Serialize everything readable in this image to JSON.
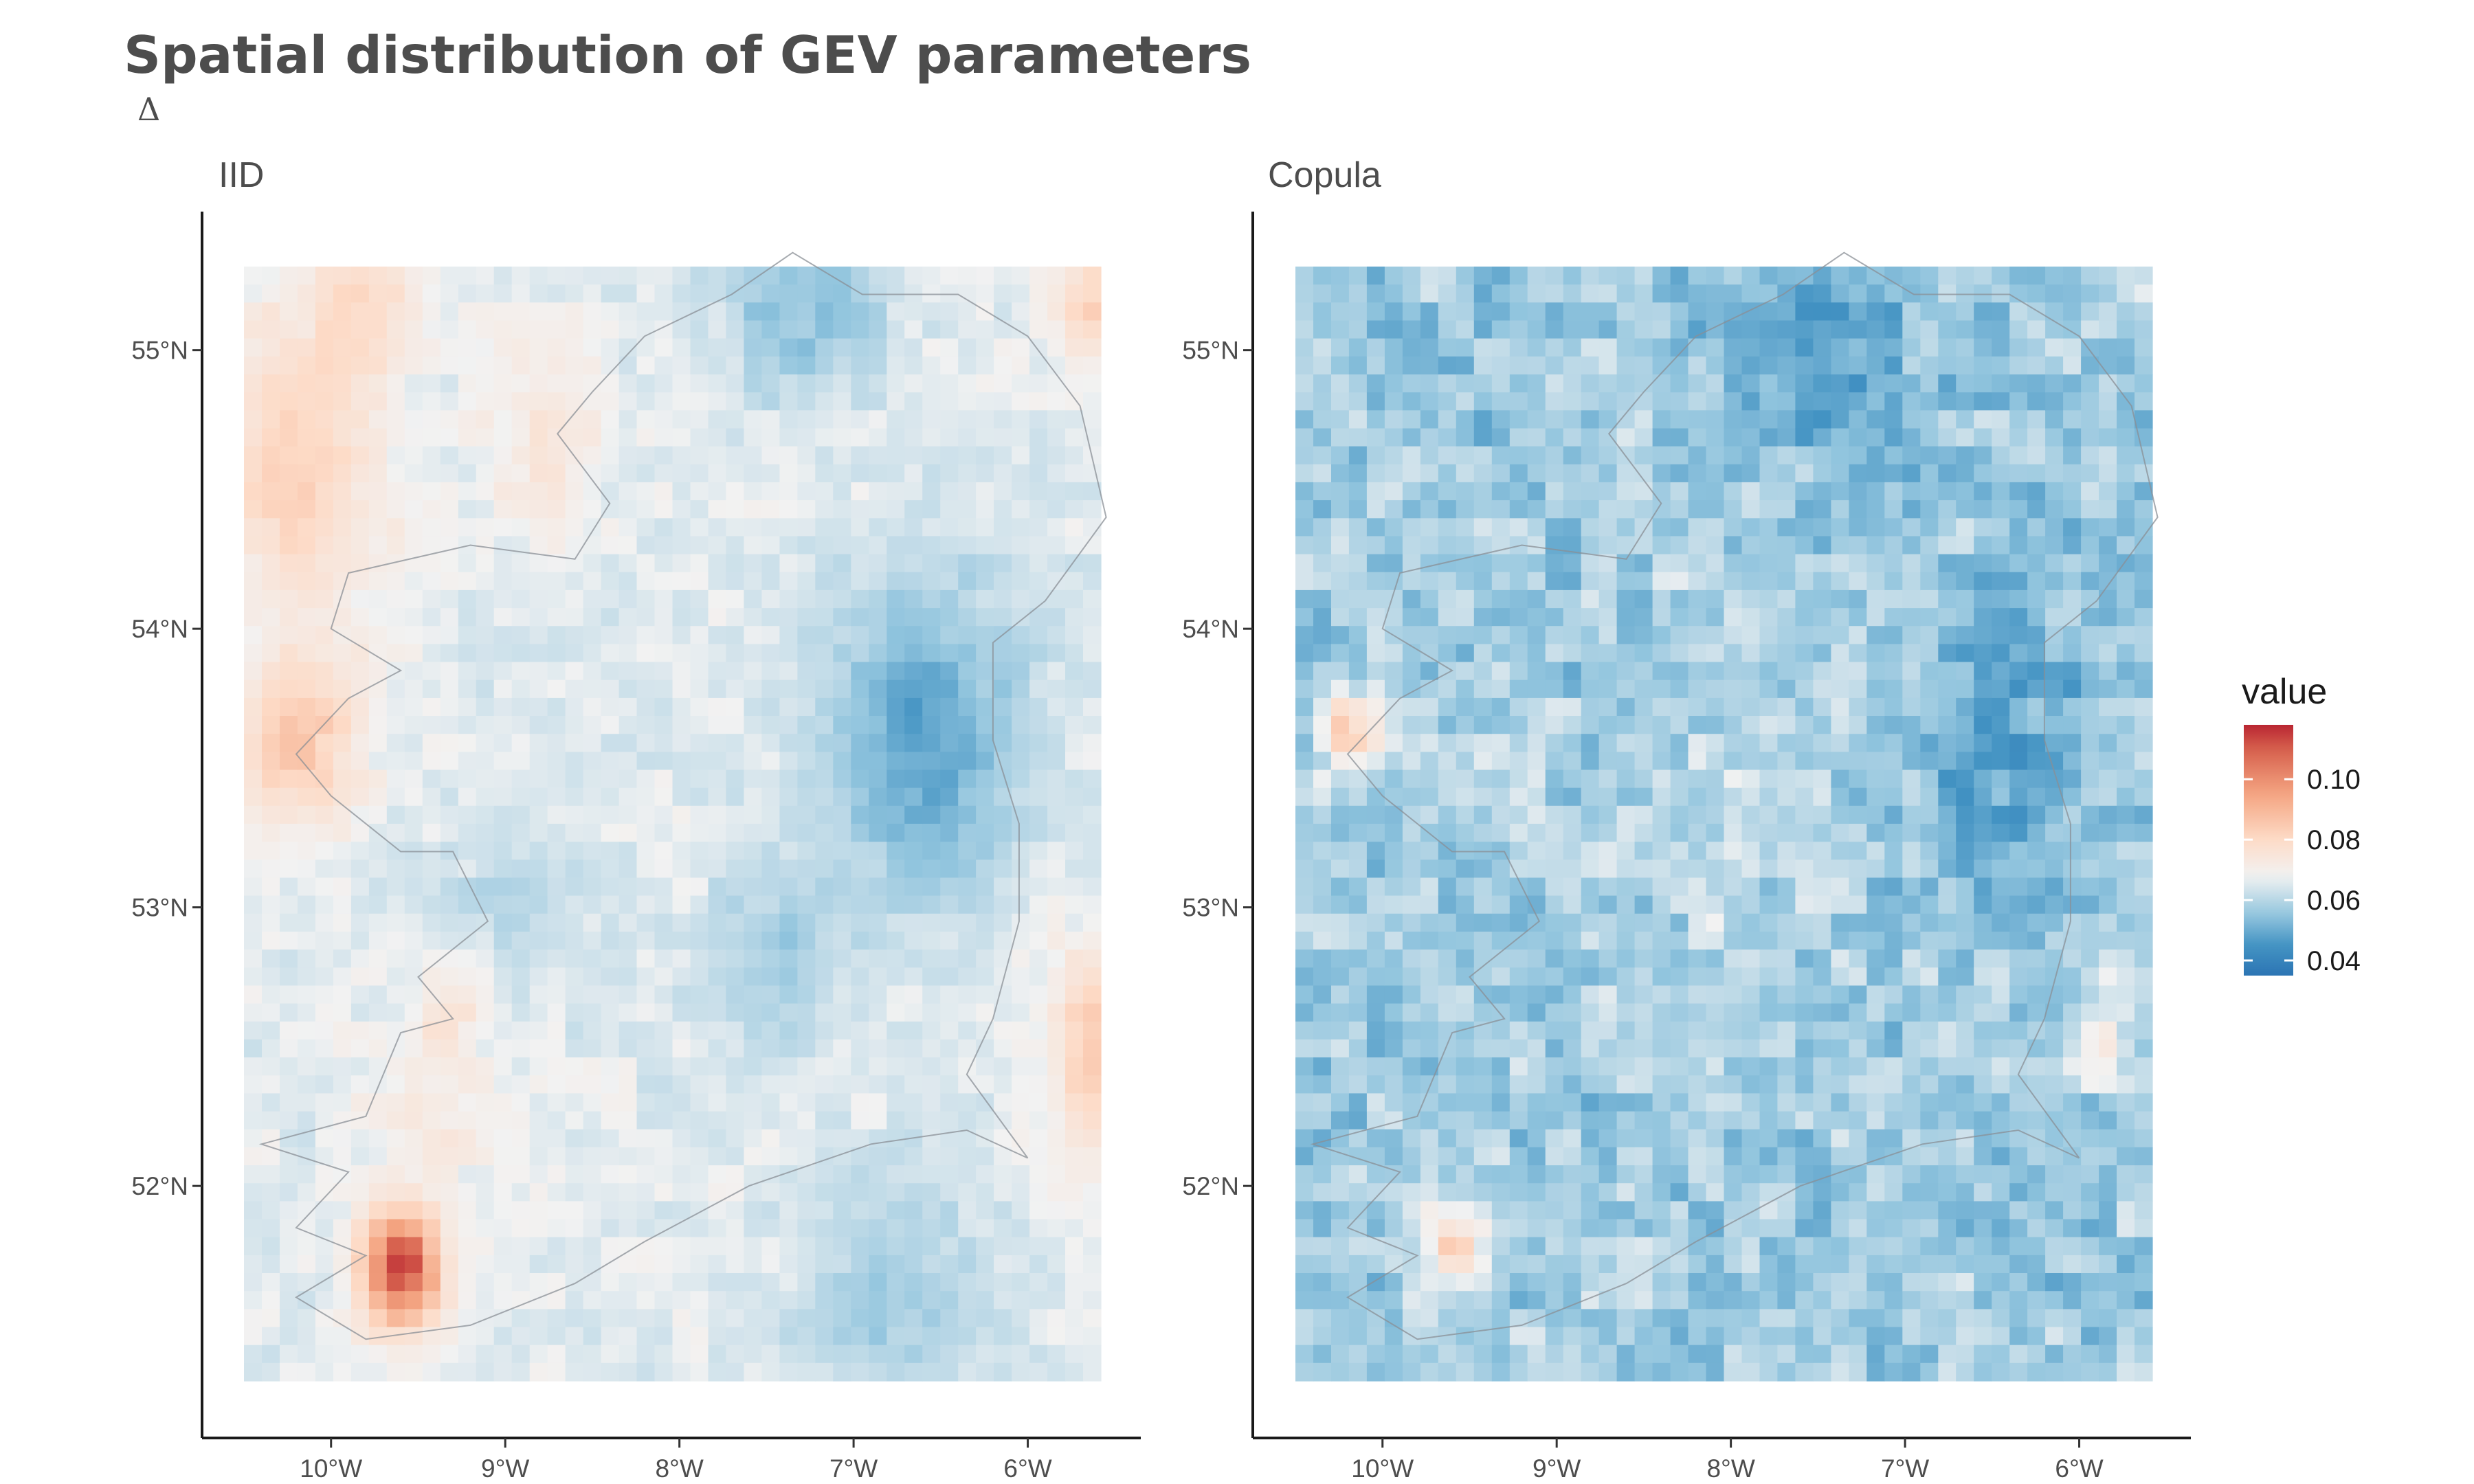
{
  "chart_data": {
    "type": "heatmap",
    "title": "Spatial distribution of GEV parameters",
    "subtitle": "Δ",
    "value_name": "value",
    "color_scale": {
      "palette": "RdBu",
      "stops": [
        {
          "value": 0.03,
          "color": "#2166ac"
        },
        {
          "value": 0.045,
          "color": "#4393c3"
        },
        {
          "value": 0.055,
          "color": "#92c5de"
        },
        {
          "value": 0.068,
          "color": "#f2f2f2"
        },
        {
          "value": 0.08,
          "color": "#fddbc7"
        },
        {
          "value": 0.095,
          "color": "#f4a582"
        },
        {
          "value": 0.11,
          "color": "#d6604d"
        },
        {
          "value": 0.12,
          "color": "#b2182b"
        }
      ],
      "limits": [
        0.035,
        0.118
      ],
      "legend_breaks": [
        0.04,
        0.06,
        0.08,
        0.1
      ],
      "legend_labels": [
        "0.04",
        "0.06",
        "0.08",
        "0.10"
      ],
      "legend_position": "right"
    },
    "x_range": [
      -10.5,
      -5.58
    ],
    "y_range": [
      51.3,
      55.3
    ],
    "x_ticks": [
      -10,
      -9,
      -8,
      -7,
      -6
    ],
    "x_tick_labels": [
      "10°W",
      "9°W",
      "8°W",
      "7°W",
      "6°W"
    ],
    "y_ticks": [
      52,
      53,
      54,
      55
    ],
    "y_tick_labels": [
      "52°N",
      "53°N",
      "54°N",
      "55°N"
    ],
    "grid": false,
    "panels": [
      {
        "name": "IID",
        "field": {
          "base": 0.066,
          "features": [
            {
              "lon": -9.6,
              "lat": 51.7,
              "amp": 0.048,
              "sx": 0.16,
              "sy": 0.14
            },
            {
              "lon": -10.2,
              "lat": 53.6,
              "amp": 0.02,
              "sx": 0.25,
              "sy": 0.2
            },
            {
              "lon": -10.2,
              "lat": 54.6,
              "amp": 0.016,
              "sx": 0.35,
              "sy": 0.4
            },
            {
              "lon": -5.6,
              "lat": 52.5,
              "amp": 0.018,
              "sx": 0.2,
              "sy": 0.25
            },
            {
              "lon": -5.6,
              "lat": 55.2,
              "amp": 0.016,
              "sx": 0.2,
              "sy": 0.15
            },
            {
              "lon": -8.8,
              "lat": 54.7,
              "amp": 0.008,
              "sx": 0.25,
              "sy": 0.25
            },
            {
              "lon": -9.8,
              "lat": 55.2,
              "amp": 0.01,
              "sx": 0.2,
              "sy": 0.2
            },
            {
              "lon": -6.6,
              "lat": 53.6,
              "amp": -0.018,
              "sx": 0.4,
              "sy": 0.4
            },
            {
              "lon": -7.3,
              "lat": 55.2,
              "amp": -0.012,
              "sx": 0.35,
              "sy": 0.25
            },
            {
              "lon": -7.5,
              "lat": 52.8,
              "amp": -0.008,
              "sx": 0.3,
              "sy": 0.25
            },
            {
              "lon": -6.8,
              "lat": 51.6,
              "amp": -0.008,
              "sx": 0.4,
              "sy": 0.3
            },
            {
              "lon": -9.4,
              "lat": 52.3,
              "amp": 0.006,
              "sx": 0.3,
              "sy": 0.3
            },
            {
              "lon": -9.3,
              "lat": 52.65,
              "amp": 0.006,
              "sx": 0.15,
              "sy": 0.15
            },
            {
              "lon": -9.0,
              "lat": 53.0,
              "amp": -0.005,
              "sx": 0.3,
              "sy": 0.3
            }
          ],
          "noise": 0.004
        }
      },
      {
        "name": "Copula",
        "field": {
          "base": 0.057,
          "features": [
            {
              "lon": -10.2,
              "lat": 53.65,
              "amp": 0.03,
              "sx": 0.12,
              "sy": 0.1
            },
            {
              "lon": -9.6,
              "lat": 51.8,
              "amp": 0.02,
              "sx": 0.15,
              "sy": 0.15
            },
            {
              "lon": -6.5,
              "lat": 53.6,
              "amp": -0.01,
              "sx": 0.35,
              "sy": 0.35
            },
            {
              "lon": -7.5,
              "lat": 55.0,
              "amp": -0.008,
              "sx": 0.4,
              "sy": 0.3
            },
            {
              "lon": -8.0,
              "lat": 53.4,
              "amp": 0.004,
              "sx": 0.5,
              "sy": 0.5
            },
            {
              "lon": -5.8,
              "lat": 52.6,
              "amp": 0.012,
              "sx": 0.15,
              "sy": 0.2
            },
            {
              "lon": -5.7,
              "lat": 55.2,
              "amp": 0.008,
              "sx": 0.15,
              "sy": 0.15
            }
          ],
          "noise": 0.009
        }
      }
    ]
  }
}
